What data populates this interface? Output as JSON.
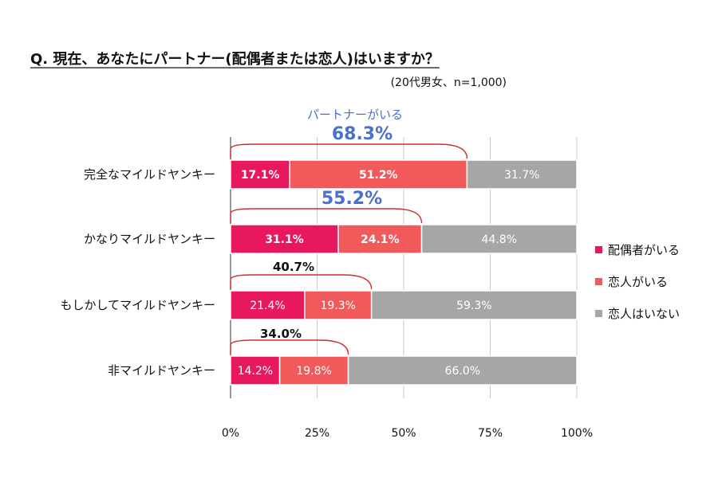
{
  "chart_data": {
    "type": "bar",
    "orientation": "horizontal",
    "stacked": true,
    "title": "Q. 現在、あなたにパートナー(配偶者または恋人)はいますか？",
    "subtitle": "(20代男女、n=1,000)",
    "categories": [
      "完全なマイルドヤンキー",
      "かなりマイルドヤンキー",
      "もしかしてマイルドヤンキー",
      "非マイルドヤンキー"
    ],
    "series": [
      {
        "name": "配偶者がいる",
        "values": [
          17.1,
          31.1,
          21.4,
          14.2
        ],
        "labels": [
          "17.1%",
          "31.1%",
          "21.4%",
          "14.2%"
        ],
        "color": "#e8185e"
      },
      {
        "name": "恋人がいる",
        "values": [
          51.2,
          24.1,
          19.3,
          19.8
        ],
        "labels": [
          "51.2%",
          "24.1%",
          "19.3%",
          "19.8%"
        ],
        "color": "#f05a5a"
      },
      {
        "name": "恋人はいない",
        "values": [
          31.7,
          44.8,
          59.3,
          66.0
        ],
        "labels": [
          "31.7%",
          "44.8%",
          "59.3%",
          "66.0%"
        ],
        "color": "#a6a6a6"
      }
    ],
    "xticks": [
      "0%",
      "25%",
      "50%",
      "75%",
      "100%"
    ],
    "xlim": [
      0,
      100
    ],
    "grid": true,
    "legend_position": "right",
    "partner_annotation": "パートナーがいる",
    "partner_totals": [
      {
        "value": 68.3,
        "label": "68.3%"
      },
      {
        "value": 55.2,
        "label": "55.2%"
      },
      {
        "value": 40.7,
        "label": "40.7%"
      },
      {
        "value": 34.0,
        "label": "34.0%"
      }
    ],
    "bracket_color": "#d02f2f"
  }
}
